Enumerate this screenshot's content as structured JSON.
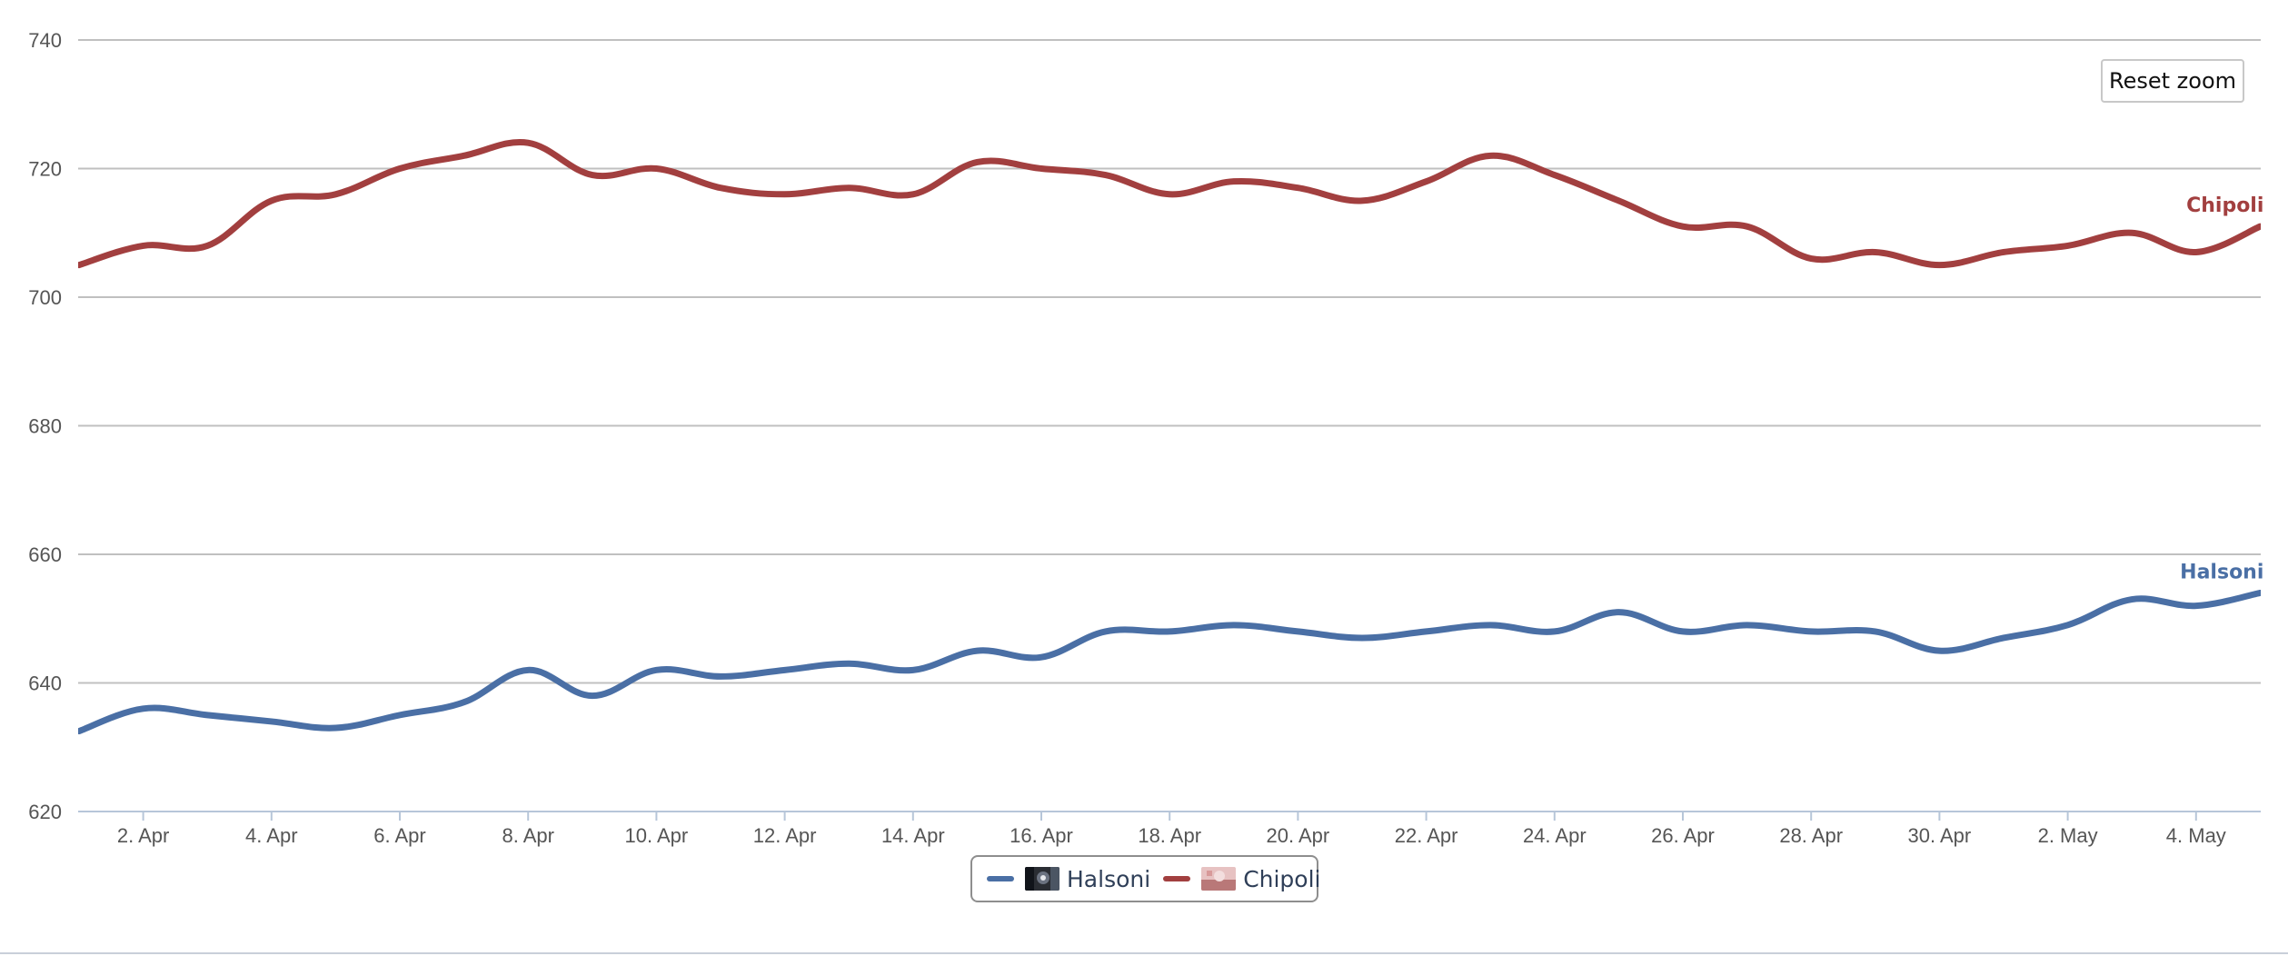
{
  "chart_data": {
    "type": "line",
    "title": "",
    "xlabel": "",
    "ylabel": "",
    "ylim": [
      620,
      740
    ],
    "yticks": [
      620,
      640,
      660,
      680,
      700,
      720,
      740
    ],
    "grid": true,
    "legend_position": "bottom-center",
    "x_start": "2026-04-01",
    "x_ticks": [
      "2. Apr",
      "4. Apr",
      "6. Apr",
      "8. Apr",
      "10. Apr",
      "12. Apr",
      "14. Apr",
      "16. Apr",
      "18. Apr",
      "20. Apr",
      "22. Apr",
      "24. Apr",
      "26. Apr",
      "28. Apr",
      "30. Apr",
      "2. May",
      "4. May"
    ],
    "x": [
      "1. Apr",
      "2. Apr",
      "3. Apr",
      "4. Apr",
      "5. Apr",
      "6. Apr",
      "7. Apr",
      "8. Apr",
      "9. Apr",
      "10. Apr",
      "11. Apr",
      "12. Apr",
      "13. Apr",
      "14. Apr",
      "15. Apr",
      "16. Apr",
      "17. Apr",
      "18. Apr",
      "19. Apr",
      "20. Apr",
      "21. Apr",
      "22. Apr",
      "23. Apr",
      "24. Apr",
      "25. Apr",
      "26. Apr",
      "27. Apr",
      "28. Apr",
      "29. Apr",
      "30. Apr",
      "1. May",
      "2. May",
      "3. May",
      "4. May",
      "5. May"
    ],
    "series": [
      {
        "name": "Halsoni",
        "color": "#4a6fa5",
        "values": [
          632.5,
          636,
          635,
          634,
          633,
          635,
          637,
          642,
          638,
          642,
          641,
          642,
          643,
          642,
          645,
          644,
          648,
          648,
          649,
          648,
          647,
          648,
          649,
          648,
          651,
          648,
          649,
          648,
          648,
          645,
          647,
          649,
          653,
          652,
          654
        ]
      },
      {
        "name": "Chipoli",
        "color": "#a23f3f",
        "values": [
          705,
          708,
          708,
          715,
          716,
          720,
          722,
          724,
          719,
          720,
          717,
          716,
          717,
          716,
          721,
          720,
          719,
          716,
          718,
          717,
          715,
          718,
          722,
          719,
          715,
          711,
          711,
          706,
          707,
          705,
          707,
          708,
          710,
          707,
          711
        ]
      }
    ]
  },
  "legend": {
    "items": [
      {
        "label": "Halsoni",
        "color": "#4a6fa5",
        "icon": "avatar-halsoni-icon"
      },
      {
        "label": "Chipoli",
        "color": "#a23f3f",
        "icon": "avatar-chipoli-icon"
      }
    ]
  },
  "controls": {
    "reset_zoom_label": "Reset zoom"
  },
  "colors": {
    "grid": "#c0c0c0",
    "axis_text": "#555555",
    "halsoni": "#4a6fa5",
    "chipoli": "#a23f3f"
  }
}
